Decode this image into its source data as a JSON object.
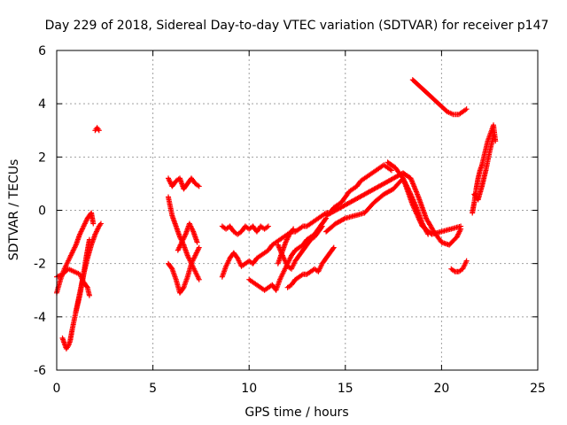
{
  "chart_data": {
    "type": "scatter",
    "title": "Day 229 of 2018, Sidereal Day-to-day VTEC variation (SDTVAR) for receiver p147",
    "xlabel": "GPS time / hours",
    "ylabel": "SDTVAR / TECUs",
    "xlim": [
      0,
      25
    ],
    "ylim": [
      -6,
      6
    ],
    "xticks": [
      0,
      5,
      10,
      15,
      20,
      25
    ],
    "yticks": [
      -6,
      -4,
      -2,
      0,
      2,
      4,
      6
    ],
    "xtick_labels": [
      "0",
      "5",
      "10",
      "15",
      "20",
      "25"
    ],
    "ytick_labels": [
      "-6",
      "-4",
      "-2",
      "0",
      "2",
      "4",
      "6"
    ],
    "grid": true,
    "marker": "+",
    "color": "#ff0000",
    "series": [
      {
        "name": "s1",
        "x": [
          0.0,
          0.2,
          0.4,
          0.6,
          0.8,
          1.0,
          1.2,
          1.4,
          1.6,
          1.8,
          1.9
        ],
        "y": [
          -3.1,
          -2.6,
          -2.2,
          -1.9,
          -1.6,
          -1.3,
          -0.9,
          -0.6,
          -0.3,
          -0.1,
          -0.5
        ]
      },
      {
        "name": "s2",
        "x": [
          0.0,
          0.3,
          0.6,
          0.9,
          1.2,
          1.4,
          1.6,
          1.7
        ],
        "y": [
          -2.5,
          -2.4,
          -2.2,
          -2.3,
          -2.4,
          -2.7,
          -2.9,
          -3.2
        ]
      },
      {
        "name": "s3",
        "x": [
          0.3,
          0.4,
          0.5,
          0.6,
          0.7,
          0.8,
          1.0,
          1.2,
          1.4,
          1.6,
          1.8,
          2.0,
          2.2,
          2.3
        ],
        "y": [
          -4.8,
          -5.0,
          -5.2,
          -5.1,
          -4.9,
          -4.5,
          -3.8,
          -3.1,
          -2.4,
          -1.8,
          -1.3,
          -0.9,
          -0.6,
          -0.5
        ]
      },
      {
        "name": "s4",
        "x": [
          1.0,
          1.1,
          1.2,
          1.3,
          1.4,
          1.5,
          1.6,
          1.7
        ],
        "y": [
          -3.8,
          -3.5,
          -3.2,
          -2.8,
          -2.4,
          -1.9,
          -1.5,
          -1.1
        ]
      },
      {
        "name": "s5",
        "x": [
          2.0,
          2.1,
          2.2
        ],
        "y": [
          3.0,
          3.1,
          3.0
        ]
      },
      {
        "name": "s6",
        "x": [
          5.8,
          6.0,
          6.2,
          6.4,
          6.6,
          6.8,
          7.0,
          7.2,
          7.4
        ],
        "y": [
          1.2,
          0.9,
          1.1,
          1.2,
          0.8,
          1.0,
          1.2,
          1.0,
          0.9
        ]
      },
      {
        "name": "s7",
        "x": [
          5.8,
          6.0,
          6.2,
          6.4,
          6.6,
          6.8,
          7.0,
          7.2,
          7.4
        ],
        "y": [
          0.5,
          -0.2,
          -0.6,
          -1.0,
          -1.3,
          -1.7,
          -2.0,
          -2.3,
          -2.6
        ]
      },
      {
        "name": "s8",
        "x": [
          5.8,
          6.0,
          6.2,
          6.4,
          6.6,
          6.8,
          7.0,
          7.2,
          7.4
        ],
        "y": [
          -2.0,
          -2.2,
          -2.6,
          -3.1,
          -2.9,
          -2.5,
          -2.0,
          -1.7,
          -1.4
        ]
      },
      {
        "name": "s9",
        "x": [
          6.3,
          6.5,
          6.7,
          6.9,
          7.1,
          7.3
        ],
        "y": [
          -1.5,
          -1.2,
          -0.9,
          -0.5,
          -0.8,
          -1.2
        ]
      },
      {
        "name": "s10",
        "x": [
          8.6,
          8.8,
          9.0,
          9.2,
          9.4,
          9.6,
          9.8,
          10.0,
          10.2,
          10.4,
          10.6,
          10.8,
          11.0,
          11.2,
          11.4,
          11.6,
          11.8,
          12.0,
          12.2,
          12.4,
          12.6,
          12.8,
          13.0,
          13.2,
          13.4,
          13.6,
          13.8,
          14.0,
          14.2,
          14.4,
          14.6,
          14.8,
          15.0,
          15.2,
          15.4,
          15.6,
          15.8,
          16.0,
          16.2,
          16.4,
          16.6,
          16.8,
          17.0,
          17.2,
          17.4
        ],
        "y": [
          -2.5,
          -2.1,
          -1.8,
          -1.6,
          -1.8,
          -2.1,
          -2.0,
          -1.9,
          -2.0,
          -1.8,
          -1.7,
          -1.6,
          -1.5,
          -1.3,
          -1.2,
          -1.1,
          -1.0,
          -0.9,
          -0.8,
          -0.8,
          -0.7,
          -0.6,
          -0.6,
          -0.5,
          -0.4,
          -0.3,
          -0.2,
          -0.1,
          -0.1,
          0.1,
          0.2,
          0.3,
          0.5,
          0.7,
          0.8,
          0.9,
          1.1,
          1.2,
          1.3,
          1.4,
          1.5,
          1.6,
          1.7,
          1.6,
          1.5
        ]
      },
      {
        "name": "s11",
        "x": [
          8.6,
          8.8,
          9.0,
          9.2,
          9.4,
          9.6,
          9.8,
          10.0,
          10.2,
          10.4,
          10.6,
          10.8,
          11.0
        ],
        "y": [
          -0.6,
          -0.7,
          -0.6,
          -0.8,
          -0.9,
          -0.8,
          -0.6,
          -0.7,
          -0.6,
          -0.8,
          -0.6,
          -0.7,
          -0.6
        ]
      },
      {
        "name": "s12",
        "x": [
          10.0,
          10.2,
          10.4,
          10.6,
          10.8,
          11.0,
          11.2,
          11.4,
          11.6,
          11.8,
          12.0,
          12.2,
          12.4,
          12.6,
          12.8,
          13.0,
          13.2,
          13.4,
          13.6,
          13.8,
          14.0
        ],
        "y": [
          -2.6,
          -2.7,
          -2.8,
          -2.9,
          -3.0,
          -2.9,
          -2.8,
          -3.0,
          -2.6,
          -2.3,
          -2.0,
          -1.7,
          -1.5,
          -1.4,
          -1.3,
          -1.1,
          -1.0,
          -0.9,
          -0.7,
          -0.5,
          -0.3
        ]
      },
      {
        "name": "s13",
        "x": [
          11.5,
          11.8,
          12.0,
          12.2,
          12.4,
          12.6,
          12.8,
          13.0,
          13.2,
          13.4,
          13.6,
          13.8
        ],
        "y": [
          -1.3,
          -1.8,
          -2.1,
          -2.2,
          -1.9,
          -1.7,
          -1.5,
          -1.3,
          -1.1,
          -1.0,
          -0.8,
          -0.6
        ]
      },
      {
        "name": "s14",
        "x": [
          12.0,
          12.2,
          12.4,
          12.6,
          12.8,
          13.0,
          13.2,
          13.4,
          13.6,
          13.8,
          14.0,
          14.2,
          14.4
        ],
        "y": [
          -2.9,
          -2.8,
          -2.6,
          -2.5,
          -2.4,
          -2.4,
          -2.3,
          -2.2,
          -2.3,
          -2.0,
          -1.8,
          -1.6,
          -1.4
        ]
      },
      {
        "name": "s15",
        "x": [
          11.5,
          11.7,
          11.9,
          12.1,
          12.3
        ],
        "y": [
          -2.0,
          -1.6,
          -1.2,
          -0.9,
          -0.7
        ]
      },
      {
        "name": "s16",
        "x": [
          14.0,
          14.5,
          15.0,
          15.5,
          16.0,
          16.5,
          17.0,
          17.5,
          18.0,
          18.4,
          18.8,
          19.2,
          19.6,
          20.0,
          20.4,
          20.8,
          21.0
        ],
        "y": [
          -0.2,
          0.0,
          0.2,
          0.4,
          0.6,
          0.8,
          1.0,
          1.2,
          1.4,
          1.2,
          0.5,
          -0.3,
          -0.8,
          -1.2,
          -1.3,
          -1.0,
          -0.7
        ]
      },
      {
        "name": "s17",
        "x": [
          14.0,
          14.5,
          15.0,
          15.5,
          16.0,
          16.5,
          17.0,
          17.5,
          18.0,
          18.5,
          19.0,
          19.5,
          20.0,
          20.5,
          21.0
        ],
        "y": [
          -0.8,
          -0.5,
          -0.3,
          -0.2,
          -0.1,
          0.3,
          0.6,
          0.8,
          1.2,
          0.2,
          -0.6,
          -0.9,
          -0.8,
          -0.7,
          -0.6
        ]
      },
      {
        "name": "s18",
        "x": [
          17.2,
          17.6,
          18.0,
          18.4,
          18.7,
          19.0,
          19.3
        ],
        "y": [
          1.8,
          1.6,
          1.2,
          0.6,
          0.1,
          -0.5,
          -0.9
        ]
      },
      {
        "name": "s19",
        "x": [
          18.5,
          18.8,
          19.1,
          19.4,
          19.7,
          20.0,
          20.3,
          20.6,
          20.9,
          21.1,
          21.3
        ],
        "y": [
          4.9,
          4.7,
          4.5,
          4.3,
          4.1,
          3.9,
          3.7,
          3.6,
          3.6,
          3.7,
          3.8
        ]
      },
      {
        "name": "s20",
        "x": [
          20.5,
          20.7,
          20.9,
          21.1,
          21.3
        ],
        "y": [
          -2.2,
          -2.3,
          -2.3,
          -2.2,
          -1.9
        ]
      },
      {
        "name": "s21",
        "x": [
          21.6,
          21.7,
          21.8,
          21.9,
          22.0,
          22.1,
          22.2,
          22.3,
          22.4,
          22.5,
          22.6,
          22.7,
          22.8
        ],
        "y": [
          -0.1,
          0.3,
          0.8,
          1.2,
          1.5,
          1.7,
          2.0,
          2.3,
          2.6,
          2.8,
          3.0,
          3.2,
          2.6
        ]
      },
      {
        "name": "s22",
        "x": [
          21.7,
          21.9,
          22.1,
          22.3,
          22.5,
          22.7
        ],
        "y": [
          0.6,
          0.4,
          0.9,
          1.5,
          2.2,
          2.8
        ]
      }
    ]
  }
}
